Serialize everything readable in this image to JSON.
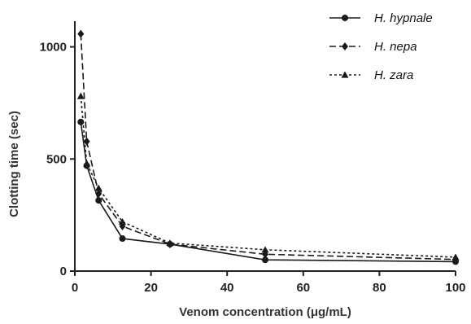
{
  "chart_data": {
    "type": "line",
    "xlabel": "Venom concentration (μg/mL)",
    "ylabel": "Clotting  time (sec)",
    "xlim": [
      0,
      100
    ],
    "ylim": [
      0,
      1100
    ],
    "x_ticks": [
      "0",
      "20",
      "40",
      "60",
      "80",
      "100"
    ],
    "y_ticks": [
      "0",
      "500",
      "1000"
    ],
    "grid": false,
    "legend_position": "top-right",
    "series": [
      {
        "name": "H. hypnale",
        "marker": "circle",
        "dash": "solid",
        "x": [
          1.56,
          3.125,
          6.25,
          12.5,
          25,
          50,
          100
        ],
        "y": [
          665,
          470,
          315,
          145,
          120,
          50,
          42
        ]
      },
      {
        "name": "H. nepa",
        "marker": "diamond",
        "dash": "dashed",
        "x": [
          1.56,
          3.125,
          6.25,
          12.5,
          25,
          50,
          100
        ],
        "y": [
          1058,
          578,
          345,
          200,
          120,
          75,
          52
        ]
      },
      {
        "name": "H. zara",
        "marker": "triangle",
        "dash": "dotted",
        "x": [
          1.56,
          3.125,
          6.25,
          12.5,
          25,
          50,
          100
        ],
        "y": [
          780,
          480,
          370,
          220,
          125,
          95,
          62
        ]
      }
    ]
  },
  "colors": {
    "axis": "#222222",
    "series": "#1a1a1a",
    "text": "#222222"
  }
}
